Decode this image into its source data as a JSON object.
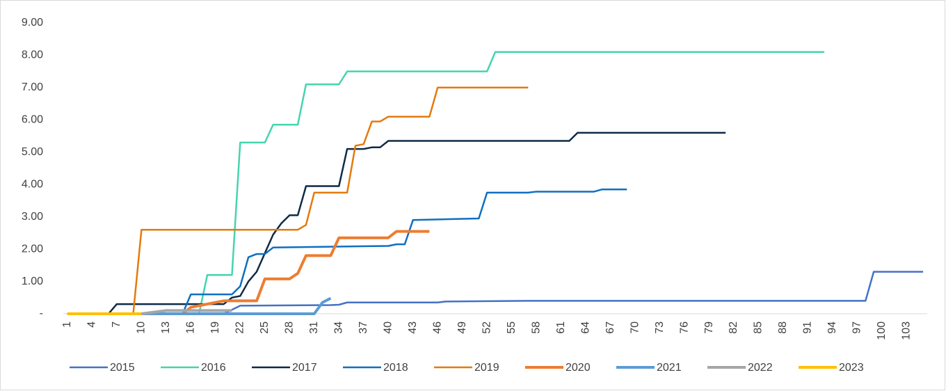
{
  "chart_data": {
    "type": "line",
    "xlim": [
      0.5,
      105.5
    ],
    "xticks": [
      1,
      4,
      7,
      10,
      13,
      16,
      19,
      22,
      25,
      28,
      31,
      34,
      37,
      40,
      43,
      46,
      49,
      52,
      55,
      58,
      61,
      64,
      67,
      70,
      73,
      76,
      79,
      82,
      85,
      88,
      91,
      94,
      97,
      100,
      103
    ],
    "ylim": [
      0,
      9
    ],
    "yticks": [
      {
        "value": 0,
        "label": "-"
      },
      {
        "value": 1,
        "label": "1.00"
      },
      {
        "value": 2,
        "label": "2.00"
      },
      {
        "value": 3,
        "label": "3.00"
      },
      {
        "value": 4,
        "label": "4.00"
      },
      {
        "value": 5,
        "label": "5.00"
      },
      {
        "value": 6,
        "label": "6.00"
      },
      {
        "value": 7,
        "label": "7.00"
      },
      {
        "value": 8,
        "label": "8.00"
      },
      {
        "value": 9,
        "label": "9.00"
      }
    ],
    "legend": "bottom",
    "series": [
      {
        "name": "2015",
        "color": "#4472c4",
        "width": 2.5,
        "x": [
          1,
          20,
          22,
          33,
          34,
          35,
          46,
          47,
          57,
          98,
          99,
          105
        ],
        "values": [
          0,
          0,
          0.25,
          0.27,
          0.28,
          0.35,
          0.35,
          0.38,
          0.4,
          0.4,
          1.3,
          1.3
        ]
      },
      {
        "name": "2016",
        "color": "#45d4ae",
        "width": 2.5,
        "x": [
          1,
          17,
          18,
          21,
          22,
          25,
          26,
          29,
          30,
          34,
          35,
          52,
          53,
          93
        ],
        "values": [
          0,
          0,
          1.2,
          1.2,
          5.3,
          5.3,
          5.85,
          5.85,
          7.1,
          7.1,
          7.5,
          7.5,
          8.1,
          8.1
        ]
      },
      {
        "name": "2017",
        "color": "#0e2a47",
        "width": 2.5,
        "x": [
          1,
          6,
          7,
          20,
          21,
          22,
          23,
          24,
          26,
          27,
          28,
          29,
          30,
          34,
          35,
          37,
          38,
          39,
          40,
          62,
          63,
          81
        ],
        "values": [
          0,
          0,
          0.3,
          0.3,
          0.5,
          0.55,
          1.0,
          1.3,
          2.45,
          2.8,
          3.05,
          3.05,
          3.95,
          3.95,
          5.1,
          5.1,
          5.15,
          5.15,
          5.35,
          5.35,
          5.6,
          5.6
        ]
      },
      {
        "name": "2018",
        "color": "#0f6fc0",
        "width": 2.5,
        "x": [
          1,
          15,
          16,
          21,
          22,
          23,
          24,
          25,
          26,
          40,
          41,
          42,
          43,
          51,
          52,
          57,
          58,
          65,
          66,
          69
        ],
        "values": [
          0,
          0,
          0.6,
          0.6,
          0.85,
          1.75,
          1.85,
          1.85,
          2.05,
          2.1,
          2.15,
          2.15,
          2.9,
          2.95,
          3.75,
          3.75,
          3.78,
          3.78,
          3.85,
          3.85
        ]
      },
      {
        "name": "2019",
        "color": "#e47a0c",
        "width": 2.5,
        "x": [
          1,
          9,
          10,
          29,
          30,
          31,
          35,
          36,
          37,
          38,
          39,
          40,
          45,
          46,
          57
        ],
        "values": [
          0,
          0,
          2.6,
          2.6,
          2.75,
          3.75,
          3.75,
          5.2,
          5.25,
          5.95,
          5.95,
          6.1,
          6.1,
          7.0,
          7.0
        ]
      },
      {
        "name": "2020",
        "color": "#ed7d31",
        "width": 4,
        "x": [
          10,
          15,
          16,
          19,
          20,
          24,
          25,
          28,
          29,
          30,
          33,
          34,
          40,
          41,
          45
        ],
        "values": [
          0,
          0,
          0.2,
          0.35,
          0.4,
          0.4,
          1.08,
          1.08,
          1.25,
          1.8,
          1.8,
          2.35,
          2.35,
          2.55,
          2.55
        ]
      },
      {
        "name": "2021",
        "color": "#5b9bd5",
        "width": 4,
        "x": [
          10,
          31,
          32,
          33
        ],
        "values": [
          0,
          0,
          0.35,
          0.48
        ]
      },
      {
        "name": "2022",
        "color": "#a5a5a5",
        "width": 4,
        "x": [
          10,
          13,
          21
        ],
        "values": [
          0,
          0.1,
          0.1
        ]
      },
      {
        "name": "2023",
        "color": "#ffc000",
        "width": 4,
        "x": [
          1,
          10
        ],
        "values": [
          0,
          0
        ]
      }
    ]
  }
}
